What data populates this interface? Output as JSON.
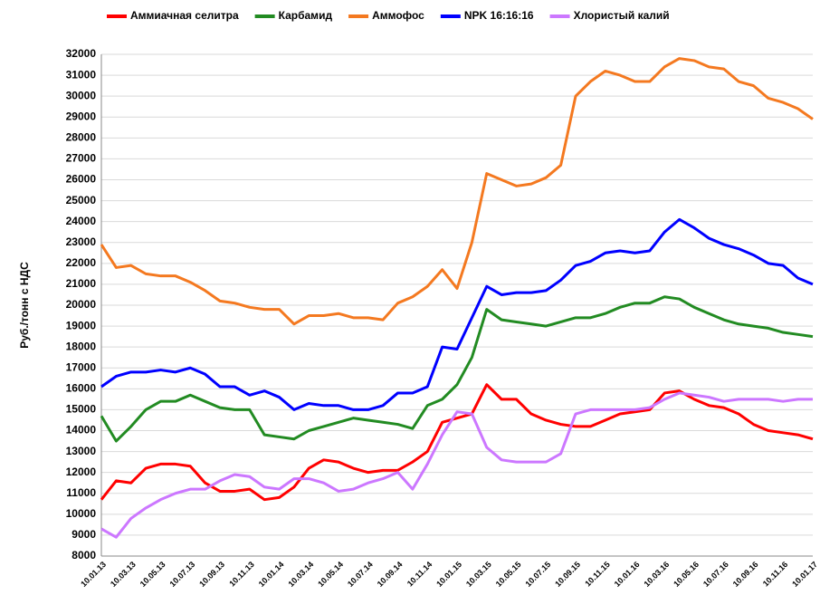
{
  "chart_data": {
    "type": "line",
    "ylabel": "Руб./тонн с НДС",
    "categories": [
      "10.01.13",
      null,
      "10.03.13",
      null,
      "10.05.13",
      null,
      "10.07.13",
      null,
      "10.09.13",
      null,
      "10.11.13",
      null,
      "10.01.14",
      null,
      "10.03.14",
      null,
      "10.05.14",
      null,
      "10.07.14",
      null,
      "10.09.14",
      null,
      "10.11.14",
      null,
      "10.01.15",
      null,
      "10.03.15",
      null,
      "10.05.15",
      null,
      "10.07.15",
      null,
      "10.09.15",
      null,
      "10.11.15",
      null,
      "10.01.16",
      null,
      "10.03.16",
      null,
      "10.05.16",
      null,
      "10.07.16",
      null,
      "10.09.16",
      null,
      "10.11.16",
      null,
      "10.01.17"
    ],
    "series": [
      {
        "name": "Аммиачная селитра",
        "color": "#ff0000",
        "values": [
          10700,
          11600,
          11500,
          12200,
          12400,
          12400,
          12300,
          11500,
          11100,
          11100,
          11200,
          10700,
          10800,
          11300,
          12200,
          12600,
          12500,
          12200,
          12000,
          12100,
          12100,
          12500,
          13000,
          14400,
          14600,
          14800,
          16200,
          15500,
          15500,
          14800,
          14500,
          14300,
          14200,
          14200,
          14500,
          14800,
          14900,
          15000,
          15800,
          15900,
          15500,
          15200,
          15100,
          14800,
          14300,
          14000,
          13900,
          13800,
          13600
        ]
      },
      {
        "name": "Карбамид",
        "color": "#228b22",
        "values": [
          14700,
          13500,
          14200,
          15000,
          15400,
          15400,
          15700,
          15400,
          15100,
          15000,
          15000,
          13800,
          13700,
          13600,
          14000,
          14200,
          14400,
          14600,
          14500,
          14400,
          14300,
          14100,
          15200,
          15500,
          16200,
          17500,
          19800,
          19300,
          19200,
          19100,
          19000,
          19200,
          19400,
          19400,
          19600,
          19900,
          20100,
          20100,
          20400,
          20300,
          19900,
          19600,
          19300,
          19100,
          19000,
          18900,
          18700,
          18600,
          18500
        ]
      },
      {
        "name": "Аммофос",
        "color": "#f47920",
        "values": [
          22900,
          21800,
          21900,
          21500,
          21400,
          21400,
          21100,
          20700,
          20200,
          20100,
          19900,
          19800,
          19800,
          19100,
          19500,
          19500,
          19600,
          19400,
          19400,
          19300,
          20100,
          20400,
          20900,
          21700,
          20800,
          23000,
          26300,
          26000,
          25700,
          25800,
          26100,
          26700,
          30000,
          30700,
          31200,
          31000,
          30700,
          30700,
          31400,
          31800,
          31700,
          31400,
          31300,
          30700,
          30500,
          29900,
          29700,
          29400,
          28900
        ]
      },
      {
        "name": "NPK 16:16:16",
        "color": "#0000ff",
        "values": [
          16100,
          16600,
          16800,
          16800,
          16900,
          16800,
          17000,
          16700,
          16100,
          16100,
          15700,
          15900,
          15600,
          15000,
          15300,
          15200,
          15200,
          15000,
          15000,
          15200,
          15800,
          15800,
          16100,
          18000,
          17900,
          19400,
          20900,
          20500,
          20600,
          20600,
          20700,
          21200,
          21900,
          22100,
          22500,
          22600,
          22500,
          22600,
          23500,
          24100,
          23700,
          23200,
          22900,
          22700,
          22400,
          22000,
          21900,
          21300,
          21000
        ]
      },
      {
        "name": "Хлористый калий",
        "color": "#cc77ff",
        "values": [
          9300,
          8900,
          9800,
          10300,
          10700,
          11000,
          11200,
          11200,
          11600,
          11900,
          11800,
          11300,
          11200,
          11700,
          11700,
          11500,
          11100,
          11200,
          11500,
          11700,
          12000,
          11200,
          12400,
          13800,
          14900,
          14800,
          13200,
          12600,
          12500,
          12500,
          12500,
          12900,
          14800,
          15000,
          15000,
          15000,
          15000,
          15100,
          15500,
          15800,
          15700,
          15600,
          15400,
          15500,
          15500,
          15500,
          15400,
          15500,
          15500
        ]
      }
    ],
    "ylim": [
      8000,
      32000
    ],
    "yticks": [
      8000,
      9000,
      10000,
      11000,
      12000,
      13000,
      14000,
      15000,
      16000,
      17000,
      18000,
      19000,
      20000,
      21000,
      22000,
      23000,
      24000,
      25000,
      26000,
      27000,
      28000,
      29000,
      30000,
      31000,
      32000
    ],
    "grid": true
  }
}
